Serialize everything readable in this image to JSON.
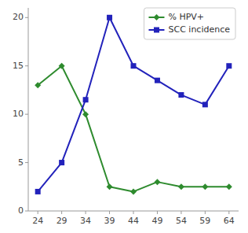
{
  "chart_data": {
    "type": "line",
    "x": [
      24,
      29,
      34,
      39,
      44,
      49,
      54,
      59,
      64
    ],
    "series": [
      {
        "name": "% HPV+",
        "color": "#2e8b2e",
        "marker": "diamond",
        "line_style": "solid",
        "values": [
          13,
          15,
          10,
          2.5,
          2,
          3,
          2.5,
          2.5,
          2.5
        ]
      },
      {
        "name": "SCC incidence",
        "color": "#2222bb",
        "marker": "square",
        "line_style": "solid",
        "values": [
          2,
          5,
          11.5,
          20,
          15,
          13.5,
          12,
          11,
          15
        ]
      }
    ],
    "xlim": [
      22,
      66
    ],
    "xticks": [
      24,
      29,
      34,
      39,
      44,
      49,
      54,
      59,
      64
    ],
    "ylim": [
      0,
      21
    ],
    "yticks": [
      0,
      5,
      10,
      15,
      20
    ],
    "grid": false,
    "legend": "upper right"
  }
}
